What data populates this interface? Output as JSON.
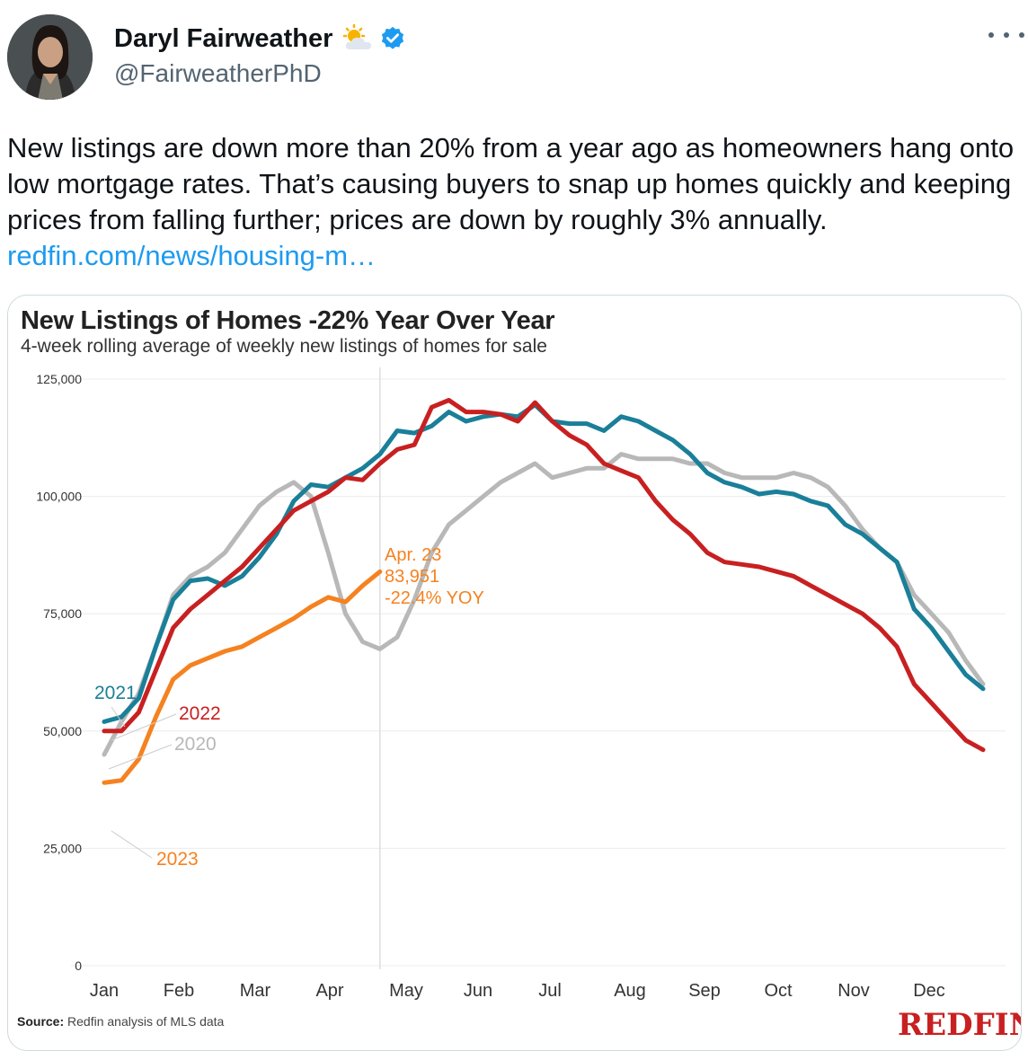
{
  "tweet": {
    "author_name": "Daryl Fairweather",
    "handle": "@FairweatherPhD",
    "text": "New listings are down more than 20% from a year ago as homeowners hang onto low mortgage rates. That’s causing buyers to snap up homes quickly and keeping prices from falling further; prices are down by roughly 3% annually. ",
    "link_text": "redfin.com/news/housing-m…",
    "icons": [
      "avatar",
      "sun-behind-cloud-icon",
      "verified-badge-icon",
      "more-options-icon"
    ]
  },
  "chart_data": {
    "type": "line",
    "title": "New Listings of Homes -22% Year Over Year",
    "subtitle": "4-week rolling average of weekly new listings of homes for sale",
    "ylim": [
      0,
      125000
    ],
    "y_ticks": [
      "125,000",
      "100,000",
      "75,000",
      "50,000",
      "25,000",
      "0"
    ],
    "y_tick_values": [
      125000,
      100000,
      75000,
      50000,
      25000,
      0
    ],
    "x_ticks": [
      "Jan",
      "Feb",
      "Mar",
      "Apr",
      "May",
      "Jun",
      "Jul",
      "Aug",
      "Sep",
      "Oct",
      "Nov",
      "Dec"
    ],
    "x_unit": "week of year",
    "series": [
      {
        "name": "2020",
        "color": "#b8b8b8",
        "values": [
          [
            1,
            45000
          ],
          [
            2,
            52000
          ],
          [
            3,
            58000
          ],
          [
            4,
            68000
          ],
          [
            5,
            79000
          ],
          [
            6,
            83000
          ],
          [
            7,
            85000
          ],
          [
            8,
            88000
          ],
          [
            9,
            93000
          ],
          [
            10,
            98000
          ],
          [
            11,
            101000
          ],
          [
            12,
            103000
          ],
          [
            13,
            100000
          ],
          [
            14,
            88000
          ],
          [
            15,
            75000
          ],
          [
            16,
            69000
          ],
          [
            17,
            67500
          ],
          [
            18,
            70000
          ],
          [
            19,
            78000
          ],
          [
            20,
            88000
          ],
          [
            21,
            94000
          ],
          [
            22,
            97000
          ],
          [
            23,
            100000
          ],
          [
            24,
            103000
          ],
          [
            25,
            105000
          ],
          [
            26,
            107000
          ],
          [
            27,
            104000
          ],
          [
            28,
            105000
          ],
          [
            29,
            106000
          ],
          [
            30,
            106000
          ],
          [
            31,
            109000
          ],
          [
            32,
            108000
          ],
          [
            33,
            108000
          ],
          [
            34,
            108000
          ],
          [
            35,
            107000
          ],
          [
            36,
            107000
          ],
          [
            37,
            105000
          ],
          [
            38,
            104000
          ],
          [
            39,
            104000
          ],
          [
            40,
            104000
          ],
          [
            41,
            105000
          ],
          [
            42,
            104000
          ],
          [
            43,
            102000
          ],
          [
            44,
            98000
          ],
          [
            45,
            93000
          ],
          [
            46,
            89000
          ],
          [
            47,
            86000
          ],
          [
            48,
            79000
          ],
          [
            49,
            75000
          ],
          [
            50,
            71000
          ],
          [
            51,
            65000
          ],
          [
            52,
            60000
          ]
        ]
      },
      {
        "name": "2021",
        "color": "#1a7f99",
        "values": [
          [
            1,
            52000
          ],
          [
            2,
            53000
          ],
          [
            3,
            57000
          ],
          [
            4,
            68000
          ],
          [
            5,
            78000
          ],
          [
            6,
            82000
          ],
          [
            7,
            82500
          ],
          [
            8,
            81000
          ],
          [
            9,
            83000
          ],
          [
            10,
            87000
          ],
          [
            11,
            92000
          ],
          [
            12,
            99000
          ],
          [
            13,
            102500
          ],
          [
            14,
            102000
          ],
          [
            15,
            104000
          ],
          [
            16,
            106000
          ],
          [
            17,
            109000
          ],
          [
            18,
            114000
          ],
          [
            19,
            113500
          ],
          [
            20,
            115000
          ],
          [
            21,
            118000
          ],
          [
            22,
            116000
          ],
          [
            23,
            117000
          ],
          [
            24,
            117500
          ],
          [
            25,
            117000
          ],
          [
            26,
            119500
          ],
          [
            27,
            116000
          ],
          [
            28,
            115500
          ],
          [
            29,
            115500
          ],
          [
            30,
            114000
          ],
          [
            31,
            117000
          ],
          [
            32,
            116000
          ],
          [
            33,
            114000
          ],
          [
            34,
            112000
          ],
          [
            35,
            109000
          ],
          [
            36,
            105000
          ],
          [
            37,
            103000
          ],
          [
            38,
            102000
          ],
          [
            39,
            100500
          ],
          [
            40,
            101000
          ],
          [
            41,
            100500
          ],
          [
            42,
            99000
          ],
          [
            43,
            98000
          ],
          [
            44,
            94000
          ],
          [
            45,
            92000
          ],
          [
            46,
            89000
          ],
          [
            47,
            86000
          ],
          [
            48,
            76000
          ],
          [
            49,
            72000
          ],
          [
            50,
            67000
          ],
          [
            51,
            62000
          ],
          [
            52,
            59000
          ]
        ]
      },
      {
        "name": "2022",
        "color": "#c82021",
        "values": [
          [
            1,
            50000
          ],
          [
            2,
            50000
          ],
          [
            3,
            54000
          ],
          [
            4,
            63000
          ],
          [
            5,
            72000
          ],
          [
            6,
            76000
          ],
          [
            7,
            79000
          ],
          [
            8,
            82000
          ],
          [
            9,
            85000
          ],
          [
            10,
            89000
          ],
          [
            11,
            93000
          ],
          [
            12,
            97000
          ],
          [
            13,
            99000
          ],
          [
            14,
            101000
          ],
          [
            15,
            104000
          ],
          [
            16,
            103500
          ],
          [
            17,
            107000
          ],
          [
            18,
            110000
          ],
          [
            19,
            111000
          ],
          [
            20,
            119000
          ],
          [
            21,
            120500
          ],
          [
            22,
            118000
          ],
          [
            23,
            118000
          ],
          [
            24,
            117500
          ],
          [
            25,
            116000
          ],
          [
            26,
            120000
          ],
          [
            27,
            116000
          ],
          [
            28,
            113000
          ],
          [
            29,
            111000
          ],
          [
            30,
            107000
          ],
          [
            31,
            105500
          ],
          [
            32,
            104000
          ],
          [
            33,
            99000
          ],
          [
            34,
            95000
          ],
          [
            35,
            92000
          ],
          [
            36,
            88000
          ],
          [
            37,
            86000
          ],
          [
            38,
            85500
          ],
          [
            39,
            85000
          ],
          [
            40,
            84000
          ],
          [
            41,
            83000
          ],
          [
            42,
            81000
          ],
          [
            43,
            79000
          ],
          [
            44,
            77000
          ],
          [
            45,
            75000
          ],
          [
            46,
            72000
          ],
          [
            47,
            68000
          ],
          [
            48,
            60000
          ],
          [
            49,
            56000
          ],
          [
            50,
            52000
          ],
          [
            51,
            48000
          ],
          [
            52,
            46000
          ]
        ]
      },
      {
        "name": "2023",
        "color": "#f58220",
        "values": [
          [
            1,
            39000
          ],
          [
            2,
            39500
          ],
          [
            3,
            44000
          ],
          [
            4,
            53000
          ],
          [
            5,
            61000
          ],
          [
            6,
            64000
          ],
          [
            7,
            65500
          ],
          [
            8,
            67000
          ],
          [
            9,
            68000
          ],
          [
            10,
            70000
          ],
          [
            11,
            72000
          ],
          [
            12,
            74000
          ],
          [
            13,
            76500
          ],
          [
            14,
            78500
          ],
          [
            15,
            77500
          ],
          [
            16,
            81000
          ],
          [
            17,
            83951
          ]
        ]
      }
    ],
    "annotation": {
      "date": "Apr. 23",
      "value": "83,951",
      "yoy": "-22.4% YOY"
    },
    "source_label": "Source:",
    "source_text": "Redfin analysis of MLS data",
    "brand": "REDFIN"
  }
}
